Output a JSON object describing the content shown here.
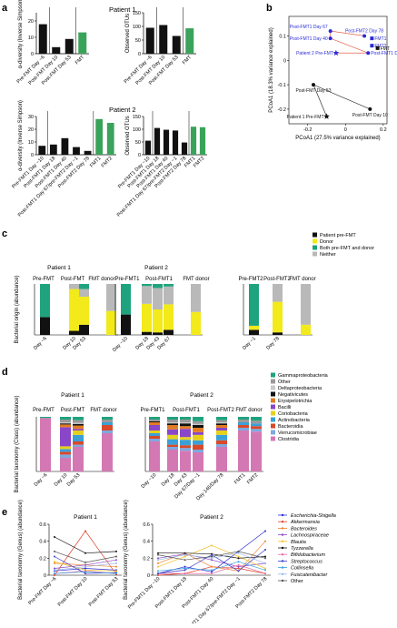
{
  "panels": {
    "a": "a",
    "b": "b",
    "c": "c",
    "d": "d",
    "e": "e"
  },
  "colors": {
    "black": "#111111",
    "green": "#3aa35a",
    "yellow": "#f2ea1a",
    "grey": "#b9b9b9",
    "teal": "#1fa37e",
    "pink": "#d478b4",
    "blue": "#2a2ad8",
    "red": "#e0432a"
  },
  "panel_a": {
    "patient1_title": "Patient 1",
    "patient2_title": "Patient 2",
    "ylabel_alpha": "α-diversity (Inverse Simpson)",
    "ylabel_otu": "Observed OTUs",
    "p1_alpha": {
      "categories": [
        "Pre-FMT Day −6",
        "Post-FMT Day 10",
        "Post-FMT Day 53",
        "FMT"
      ],
      "values": [
        18,
        4,
        9,
        13
      ],
      "ylim": [
        0,
        25
      ],
      "ticks": [
        "0",
        "10",
        "20"
      ],
      "green": [
        3
      ]
    },
    "p1_otu": {
      "categories": [
        "Pre-FMT Day −6",
        "Post-FMT Day 10",
        "Post-FMT Day 53",
        "FMT"
      ],
      "values": [
        95,
        105,
        65,
        93
      ],
      "ylim": [
        0,
        150
      ],
      "ticks": [
        "0",
        "50",
        "100",
        "150"
      ],
      "green": [
        3
      ]
    },
    "p2_alpha": {
      "categories": [
        "Pre-FMT1 Day −10",
        "Post-FMT1 Day 18",
        "Post-FMT1 Day 40",
        "Post-FMT1 Day 67/pre-FMT2 Day −1",
        "Post-FMT2 Day 78",
        "FMT1",
        "FMT2"
      ],
      "values": [
        7,
        8,
        13,
        6,
        3,
        28,
        25
      ],
      "ylim": [
        0,
        30
      ],
      "ticks": [
        "0",
        "10",
        "20",
        "30"
      ],
      "green": [
        5,
        6
      ]
    },
    "p2_otu": {
      "categories": [
        "Pre-FMT1 Day −10",
        "Post-FMT1 Day 18",
        "Post-FMT1 Day 40",
        "Post-FMT1 Day 67/pre-FMT2 Day −1",
        "Post-FMT2 Day 78",
        "FMT1",
        "FMT2"
      ],
      "values": [
        55,
        105,
        98,
        95,
        48,
        110,
        108
      ],
      "ylim": [
        0,
        150
      ],
      "ticks": [
        "0",
        "50",
        "100",
        "150"
      ],
      "green": [
        5,
        6
      ]
    }
  },
  "chart_data": [
    {
      "type": "scatter",
      "panel": "b",
      "xlabel": "PCoA1 (27.5% variance explained)",
      "ylabel": "PCoA1 (18.3% variance explained)",
      "xlim": [
        -0.3,
        0.22
      ],
      "ylim": [
        -0.26,
        0.18
      ],
      "xticks": [
        -0.2,
        0,
        0.2
      ],
      "yticks": [
        -0.2,
        -0.1,
        0,
        0.1
      ],
      "points": [
        {
          "label": "Post-FMT1 Day 67",
          "x": -0.08,
          "y": 0.12,
          "color": "blue",
          "marker": "dot",
          "anchor": "left-up"
        },
        {
          "label": "Post-FMT1 Day 40",
          "x": -0.08,
          "y": 0.09,
          "color": "blue",
          "marker": "dot",
          "anchor": "left"
        },
        {
          "label": "Post-FMT2 Day 78",
          "x": 0.1,
          "y": 0.1,
          "color": "blue",
          "marker": "dot",
          "anchor": "up"
        },
        {
          "label": "FMT1",
          "x": 0.14,
          "y": 0.09,
          "color": "blue",
          "marker": "square"
        },
        {
          "label": "FMT2",
          "x": 0.14,
          "y": 0.06,
          "color": "blue",
          "marker": "square"
        },
        {
          "label": "FMT",
          "x": 0.17,
          "y": 0.05,
          "color": "black",
          "marker": "square"
        },
        {
          "label": "Post-FMT1 Day 18",
          "x": 0.12,
          "y": 0.03,
          "color": "blue",
          "marker": "dot"
        },
        {
          "label": "Patient 2 Pre-FMT",
          "x": -0.05,
          "y": 0.03,
          "color": "blue",
          "marker": "star",
          "anchor": "left"
        },
        {
          "label": "Post-FMT Day 53",
          "x": -0.17,
          "y": -0.1,
          "color": "black",
          "marker": "dot",
          "anchor": "below"
        },
        {
          "label": "Patient 1 Pre-FMT",
          "x": -0.1,
          "y": -0.23,
          "color": "black",
          "marker": "star",
          "anchor": "left"
        },
        {
          "label": "Post-FMT Day 10",
          "x": 0.13,
          "y": -0.2,
          "color": "black",
          "marker": "dot",
          "anchor": "below"
        }
      ]
    },
    {
      "type": "bar",
      "panel": "c",
      "stacked": true,
      "ylabel": "Bacterial origin (abundance)",
      "legend": [
        "Patient pre-FMT",
        "Donor",
        "Both pre-FMT and donor",
        "Neither"
      ],
      "groups": [
        {
          "title": "Patient 1",
          "cats": [
            "Day −6",
            "Day 10",
            "Day 53",
            "FMT"
          ],
          "headers": [
            "Pre-FMT",
            "Post-FMT",
            "FMT donor"
          ],
          "stacks": [
            [
              0.35,
              0,
              0,
              0
            ],
            [
              0.08,
              0.82,
              0.1,
              0.0
            ],
            [
              0.2,
              0.55,
              0.15,
              0.1
            ],
            [
              0,
              0.47,
              0.53,
              0
            ]
          ]
        },
        {
          "title": "Patient 2",
          "cats": [
            "Day −10",
            "Day 18",
            "Day 43",
            "Day 67",
            "FMT1"
          ],
          "headers": [
            "Pre-FMT1",
            "Post-FMT1",
            "FMT donor"
          ],
          "stacks": [
            [
              0.4,
              0,
              0,
              0
            ],
            [
              0.06,
              0.55,
              0.35,
              0.04
            ],
            [
              0.05,
              0.45,
              0.42,
              0.08
            ],
            [
              0.1,
              0.5,
              0.35,
              0.05
            ],
            [
              0,
              0.45,
              0.55,
              0
            ]
          ]
        },
        {
          "title": "",
          "cats": [
            "Day −1",
            "Day 78",
            "FMT2"
          ],
          "headers": [
            "Pre-FMT2",
            "Post-FMT2",
            "FMT donor"
          ],
          "stacks": [
            [
              0.1,
              0.08,
              0,
              0
            ],
            [
              0.05,
              0.6,
              0.35,
              0
            ],
            [
              0,
              0.2,
              0.8,
              0
            ]
          ]
        }
      ]
    },
    {
      "type": "bar",
      "panel": "d",
      "stacked": true,
      "ylabel": "Bacterial taxonomy (Class) (abundance)",
      "legend": [
        "Gammaproteobacteria",
        "Other",
        "Deltaproteobacteria",
        "Negativicutes",
        "Erysipelotrichia",
        "Bacilli",
        "Coriobacteria",
        "Actinobacteria",
        "Bacteroidia",
        "Verrucomicrobiae",
        "Clostridia"
      ]
    },
    {
      "type": "line",
      "panel": "e",
      "ylabel": "Bacterial taxonomy (Genus) (abundance)",
      "legend": [
        "Escherichia-Shigella",
        "Akkermansia",
        "Bacteroides",
        "Lachnospiraceae",
        "Blautia",
        "Tyzzerella",
        "Bifidobacterium",
        "Streptococcus",
        "Collinsella",
        "Fusicatenibacter",
        "Other"
      ],
      "patient1": {
        "title": "Patient 1",
        "x": [
          "Pre-FMT Day −6",
          "Post-FMT Day 10",
          "Post-FMT Day 53"
        ],
        "ylim": [
          0,
          0.6
        ],
        "yticks": [
          "0",
          "0.2",
          "0.4",
          "0.6"
        ]
      },
      "patient2": {
        "title": "Patient 2",
        "x": [
          "Pre-FMT1 Day −10",
          "Post-FMT1 Day 18",
          "Post-FMT1 Day 40",
          "Post-FMT1 Day 67/pre-FMT2 Day −1",
          "Post-FMT2 Day 78"
        ],
        "ylim": [
          0,
          0.6
        ],
        "yticks": [
          "0",
          "0.2",
          "0.4",
          "0.6"
        ]
      }
    }
  ],
  "panel_d": {
    "p1_title": "Patient 1",
    "p2_title": "Patient 2",
    "p1_headers": [
      "Pre-FMT",
      "Post-FMT",
      "FMT donor"
    ],
    "p2_headers": [
      "Pre-FMT1",
      "Post-FMT1",
      "Post-FMT2",
      "FMT donor"
    ],
    "p1_cats": [
      "Day −6",
      "Day 10",
      "Day 53"
    ],
    "p2_cats": [
      "Day −10",
      "Day 18",
      "Day 43",
      "Day 67/Day −1",
      "Day 146/Day 78",
      "FMT1",
      "FMT2"
    ]
  }
}
